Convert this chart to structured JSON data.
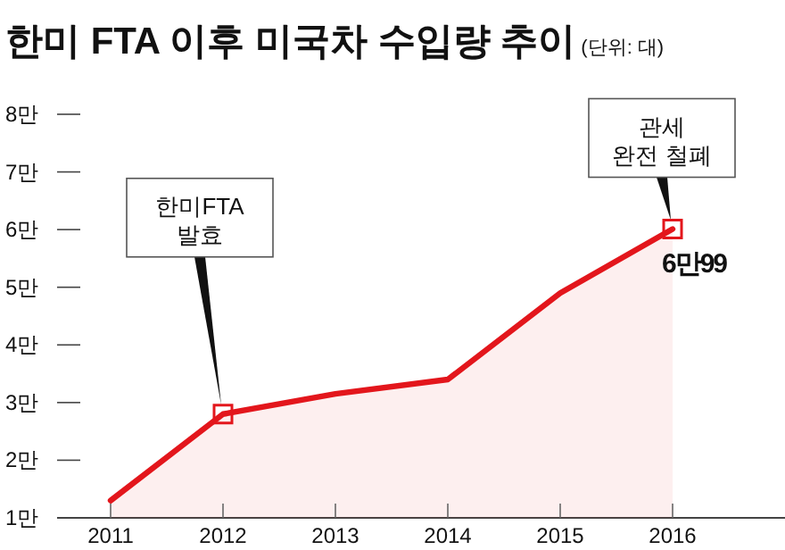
{
  "chart_data": {
    "type": "area",
    "title": "한미 FTA 이후 미국차 수입량 추이",
    "subtitle": "(단위: 대)",
    "categories": [
      "2011",
      "2012",
      "2013",
      "2014",
      "2015",
      "2016"
    ],
    "series": [
      {
        "color": "#e3161c",
        "values": [
          1.3,
          2.8,
          3.15,
          3.4,
          4.9,
          6.0099
        ],
        "value_labels": [
          null,
          null,
          null,
          null,
          null,
          "6만99"
        ]
      }
    ],
    "ylim": [
      1,
      8
    ],
    "yticks": [
      {
        "value": 1,
        "label": "1만"
      },
      {
        "value": 2,
        "label": "2만"
      },
      {
        "value": 3,
        "label": "3만"
      },
      {
        "value": 4,
        "label": "4만"
      },
      {
        "value": 5,
        "label": "5만"
      },
      {
        "value": 6,
        "label": "6만"
      },
      {
        "value": 7,
        "label": "7만"
      },
      {
        "value": 8,
        "label": "8만"
      }
    ],
    "annotations": [
      {
        "text": "한미FTA\n발효",
        "x": "2012",
        "y": 2.8
      },
      {
        "text": "관세\n완전 철폐",
        "x": "2016",
        "y": 6.0099
      }
    ],
    "grid": false
  }
}
